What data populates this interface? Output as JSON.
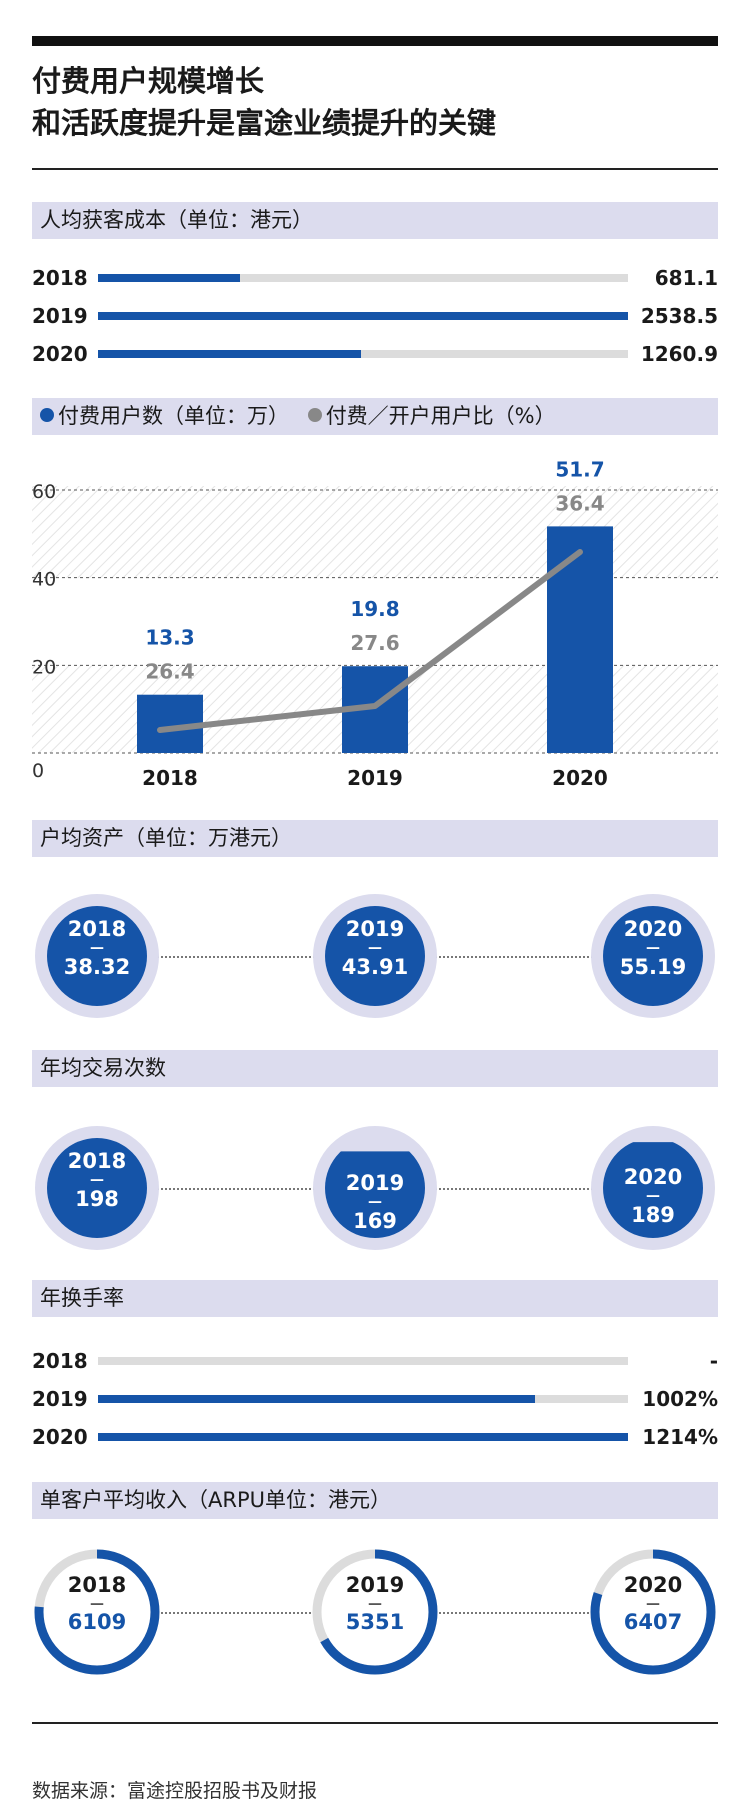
{
  "title": {
    "line1": "付费用户规模增长",
    "line2": "和活跃度提升是富途业绩提升的关键"
  },
  "sections": {
    "cac": {
      "label": "人均获客成本（单位：港元）",
      "rows": [
        {
          "year": "2018",
          "value": "681.1",
          "num": 681.1
        },
        {
          "year": "2019",
          "value": "2538.5",
          "num": 2538.5
        },
        {
          "year": "2020",
          "value": "1260.9",
          "num": 1260.9
        }
      ]
    },
    "users": {
      "legend_paid": "付费用户数（单位：万）",
      "legend_ratio": "付费／开户用户比（%）"
    },
    "assets": {
      "label": "户均资产（单位：万港元）",
      "items": [
        {
          "year": "2018",
          "value": "38.32"
        },
        {
          "year": "2019",
          "value": "43.91"
        },
        {
          "year": "2020",
          "value": "55.19"
        }
      ]
    },
    "trades": {
      "label": "年均交易次数",
      "items": [
        {
          "year": "2018",
          "value": "198",
          "num": 198
        },
        {
          "year": "2019",
          "value": "169",
          "num": 169
        },
        {
          "year": "2020",
          "value": "189",
          "num": 189
        }
      ]
    },
    "turnover": {
      "label": "年换手率",
      "rows": [
        {
          "year": "2018",
          "value": "-",
          "num": 0
        },
        {
          "year": "2019",
          "value": "1002%",
          "num": 1002
        },
        {
          "year": "2020",
          "value": "1214%",
          "num": 1214
        }
      ]
    },
    "arpu": {
      "label": "单客户平均收入（ARPU单位：港元）",
      "items": [
        {
          "year": "2018",
          "value": "6109",
          "num": 6109
        },
        {
          "year": "2019",
          "value": "5351",
          "num": 5351
        },
        {
          "year": "2020",
          "value": "6407",
          "num": 6407
        }
      ]
    }
  },
  "dash_char": "—",
  "source": "数据来源：富途控股招股书及财报",
  "colors": {
    "blue": "#1554a8",
    "gray": "#888888",
    "band": "#dcdcee",
    "track": "#dcdcdc"
  },
  "chart_data": {
    "type": "bar",
    "categories": [
      "2018",
      "2019",
      "2020"
    ],
    "series": [
      {
        "name": "付费用户数（单位：万）",
        "type": "bar",
        "values": [
          13.3,
          19.8,
          51.7
        ],
        "labels": [
          "13.3",
          "19.8",
          "51.7"
        ]
      },
      {
        "name": "付费／开户用户比（%）",
        "type": "line",
        "values": [
          26.4,
          27.6,
          36.4
        ],
        "labels": [
          "26.4",
          "27.6",
          "36.4"
        ]
      }
    ],
    "yticks": [
      "0",
      "20",
      "40",
      "60"
    ],
    "ylim": [
      0,
      60
    ]
  }
}
